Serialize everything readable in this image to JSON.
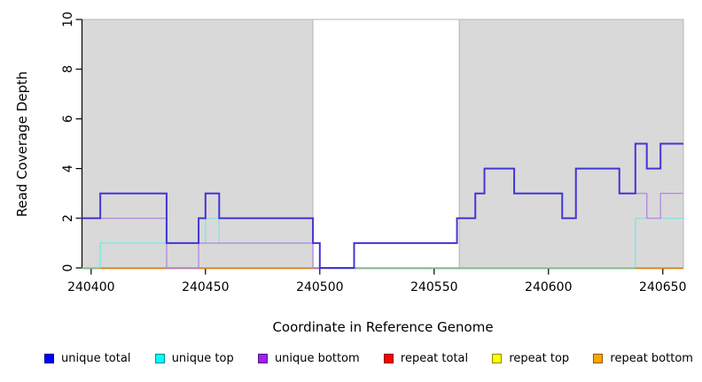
{
  "chart_data": {
    "type": "line",
    "subtype": "step",
    "title": "",
    "xlabel": "Coordinate in Reference Genome",
    "ylabel": "Read Coverage Depth",
    "xlim": [
      240396,
      240659
    ],
    "ylim": [
      0,
      10
    ],
    "xticks": [
      240400,
      240450,
      240500,
      240550,
      240600,
      240650
    ],
    "yticks": [
      0,
      2,
      4,
      6,
      8,
      10
    ],
    "grid": false,
    "legend_position": "bottom",
    "shaded_regions": {
      "fill": "#d9d9d9",
      "border": "#b5b5b5",
      "ranges": [
        [
          240396,
          240497
        ],
        [
          240561,
          240659
        ]
      ]
    },
    "series": [
      {
        "name": "repeat total",
        "color": "#dd0000",
        "width": 1.2,
        "steps": [
          [
            240396,
            0
          ]
        ]
      },
      {
        "name": "repeat top",
        "color": "#f0e000",
        "width": 1.2,
        "steps": [
          [
            240396,
            0
          ]
        ]
      },
      {
        "name": "unique top",
        "color": "#7fe7e4",
        "width": 1.4,
        "steps": [
          [
            240396,
            0
          ],
          [
            240404,
            1
          ],
          [
            240450,
            2
          ],
          [
            240456,
            1
          ],
          [
            240500,
            0
          ],
          [
            240638,
            2
          ]
        ]
      },
      {
        "name": "baseline green overlay",
        "color": "#8ecf96",
        "width": 1.3,
        "segments": [
          {
            "from": 240396,
            "to": 240404,
            "value": 0
          },
          {
            "from": 240500,
            "to": 240638,
            "value": 0
          }
        ]
      },
      {
        "name": "repeat bottom",
        "color": "#ff9d1e",
        "width": 1.6,
        "segments": [
          {
            "from": 240404,
            "to": 240497,
            "value": 0
          },
          {
            "from": 240638,
            "to": 240659,
            "value": 0
          }
        ]
      },
      {
        "name": "unique bottom",
        "color": "#b78ae0",
        "width": 1.4,
        "steps": [
          [
            240396,
            2
          ],
          [
            240433,
            0
          ],
          [
            240447,
            1
          ],
          [
            240497,
            0
          ],
          [
            240515,
            1
          ],
          [
            240560,
            2
          ],
          [
            240568,
            3
          ],
          [
            240572,
            4
          ],
          [
            240585,
            3
          ],
          [
            240606,
            2
          ],
          [
            240612,
            4
          ],
          [
            240631,
            3
          ],
          [
            240643,
            2
          ],
          [
            240649,
            3
          ]
        ]
      },
      {
        "name": "unique total",
        "color": "#4336d6",
        "width": 2,
        "steps": [
          [
            240396,
            2
          ],
          [
            240404,
            3
          ],
          [
            240433,
            1
          ],
          [
            240447,
            2
          ],
          [
            240450,
            3
          ],
          [
            240456,
            2
          ],
          [
            240497,
            1
          ],
          [
            240500,
            0
          ],
          [
            240515,
            1
          ],
          [
            240560,
            2
          ],
          [
            240568,
            3
          ],
          [
            240572,
            4
          ],
          [
            240585,
            3
          ],
          [
            240606,
            2
          ],
          [
            240612,
            4
          ],
          [
            240631,
            3
          ],
          [
            240638,
            5
          ],
          [
            240643,
            4
          ],
          [
            240649,
            5
          ]
        ]
      }
    ]
  },
  "legend": {
    "items": [
      {
        "label": "unique total",
        "color": "#0000ff"
      },
      {
        "label": "unique top",
        "color": "#00ffff"
      },
      {
        "label": "unique bottom",
        "color": "#a020f0"
      },
      {
        "label": "repeat total",
        "color": "#ff0000"
      },
      {
        "label": "repeat top",
        "color": "#ffff00"
      },
      {
        "label": "repeat bottom",
        "color": "#ffa500"
      }
    ]
  }
}
